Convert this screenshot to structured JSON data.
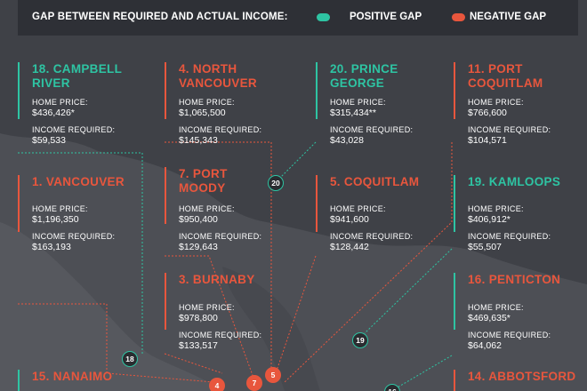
{
  "legend": {
    "title": "GAP BETWEEN REQUIRED AND ACTUAL INCOME:",
    "positive_label": "POSITIVE GAP",
    "negative_label": "NEGATIVE GAP"
  },
  "colors": {
    "positive": "#2ec4a3",
    "negative": "#e8563d",
    "background": "#3f4147",
    "land": "#505258",
    "legend_bg": "#2e3036"
  },
  "fields": {
    "home_price_label": "HOME PRICE:",
    "income_label": "INCOME REQUIRED:"
  },
  "cities": [
    {
      "rank": "18",
      "name": "18. CAMPBELL RIVER",
      "line1": "18. CAMPBELL",
      "line2": "RIVER",
      "home_price": "$436,426*",
      "income": "$59,533",
      "gap": "positive"
    },
    {
      "rank": "4",
      "name": "4. NORTH VANCOUVER",
      "line1": "4. NORTH",
      "line2": "VANCOUVER",
      "home_price": "$1,065,500",
      "income": "$145,343",
      "gap": "negative"
    },
    {
      "rank": "20",
      "name": "20. PRINCE GEORGE",
      "line1": "20. PRINCE",
      "line2": "GEORGE",
      "home_price": "$315,434**",
      "income": "$43,028",
      "gap": "positive"
    },
    {
      "rank": "11",
      "name": "11. PORT COQUITLAM",
      "line1": "11. PORT",
      "line2": "COQUITLAM",
      "home_price": "$766,600",
      "income": "$104,571",
      "gap": "negative"
    },
    {
      "rank": "1",
      "name": "1. VANCOUVER",
      "line1": "1. VANCOUVER",
      "line2": "",
      "home_price": "$1,196,350",
      "income": "$163,193",
      "gap": "negative"
    },
    {
      "rank": "7",
      "name": "7. PORT MOODY",
      "line1": "7. PORT",
      "line2": "MOODY",
      "home_price": "$950,400",
      "income": "$129,643",
      "gap": "negative"
    },
    {
      "rank": "5",
      "name": "5. COQUITLAM",
      "line1": "5. COQUITLAM",
      "line2": "",
      "home_price": "$941,600",
      "income": "$128,442",
      "gap": "negative"
    },
    {
      "rank": "19",
      "name": "19. KAMLOOPS",
      "line1": "19. KAMLOOPS",
      "line2": "",
      "home_price": "$406,912*",
      "income": "$55,507",
      "gap": "positive"
    },
    {
      "rank": "3",
      "name": "3. BURNABY",
      "line1": "3. BURNABY",
      "line2": "",
      "home_price": "$978,800",
      "income": "$133,517",
      "gap": "negative"
    },
    {
      "rank": "16",
      "name": "16. PENTICTON",
      "line1": "16. PENTICTON",
      "line2": "",
      "home_price": "$469,635*",
      "income": "$64,062",
      "gap": "positive"
    },
    {
      "rank": "15",
      "name": "15. NANAIMO",
      "line1": "15. NANAIMO",
      "line2": "",
      "gap": "positive"
    },
    {
      "rank": "14",
      "name": "14. ABBOTSFORD",
      "line1": "14. ABBOTSFORD",
      "line2": "",
      "gap": "negative"
    }
  ]
}
